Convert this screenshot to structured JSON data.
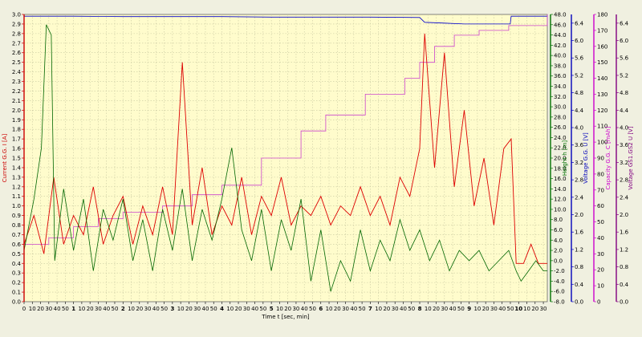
{
  "chart_data": {
    "type": "line",
    "xlabel": "Time  t  [sec, min]",
    "x_unit": "min",
    "xlim": [
      0,
      10.58
    ],
    "grid": true,
    "x_ticks": [
      {
        "label": "0",
        "x": 0
      },
      {
        "label": "10",
        "x": 0.1667
      },
      {
        "label": "20",
        "x": 0.3333
      },
      {
        "label": "30",
        "x": 0.5
      },
      {
        "label": "40",
        "x": 0.6667
      },
      {
        "label": "50",
        "x": 0.8333
      },
      {
        "label": "1",
        "x": 1,
        "major": true
      },
      {
        "label": "10",
        "x": 1.1667
      },
      {
        "label": "20",
        "x": 1.3333
      },
      {
        "label": "30",
        "x": 1.5
      },
      {
        "label": "40",
        "x": 1.6667
      },
      {
        "label": "50",
        "x": 1.8333
      },
      {
        "label": "2",
        "x": 2,
        "major": true
      },
      {
        "label": "10",
        "x": 2.1667
      },
      {
        "label": "20",
        "x": 2.3333
      },
      {
        "label": "30",
        "x": 2.5
      },
      {
        "label": "40",
        "x": 2.6667
      },
      {
        "label": "50",
        "x": 2.8333
      },
      {
        "label": "3",
        "x": 3,
        "major": true
      },
      {
        "label": "10",
        "x": 3.1667
      },
      {
        "label": "20",
        "x": 3.3333
      },
      {
        "label": "30",
        "x": 3.5
      },
      {
        "label": "40",
        "x": 3.6667
      },
      {
        "label": "50",
        "x": 3.8333
      },
      {
        "label": "4",
        "x": 4,
        "major": true
      },
      {
        "label": "10",
        "x": 4.1667
      },
      {
        "label": "20",
        "x": 4.3333
      },
      {
        "label": "30",
        "x": 4.5
      },
      {
        "label": "40",
        "x": 4.6667
      },
      {
        "label": "50",
        "x": 4.8333
      },
      {
        "label": "5",
        "x": 5,
        "major": true
      },
      {
        "label": "10",
        "x": 5.1667
      },
      {
        "label": "20",
        "x": 5.3333
      },
      {
        "label": "30",
        "x": 5.5
      },
      {
        "label": "40",
        "x": 5.6667
      },
      {
        "label": "50",
        "x": 5.8333
      },
      {
        "label": "6",
        "x": 6,
        "major": true
      },
      {
        "label": "10",
        "x": 6.1667
      },
      {
        "label": "20",
        "x": 6.3333
      },
      {
        "label": "30",
        "x": 6.5
      },
      {
        "label": "40",
        "x": 6.6667
      },
      {
        "label": "50",
        "x": 6.8333
      },
      {
        "label": "7",
        "x": 7,
        "major": true
      },
      {
        "label": "10",
        "x": 7.1667
      },
      {
        "label": "20",
        "x": 7.3333
      },
      {
        "label": "30",
        "x": 7.5
      },
      {
        "label": "40",
        "x": 7.6667
      },
      {
        "label": "50",
        "x": 7.8333
      },
      {
        "label": "8",
        "x": 8,
        "major": true
      },
      {
        "label": "10",
        "x": 8.1667
      },
      {
        "label": "20",
        "x": 8.3333
      },
      {
        "label": "30",
        "x": 8.5
      },
      {
        "label": "40",
        "x": 8.6667
      },
      {
        "label": "50",
        "x": 8.8333
      },
      {
        "label": "9",
        "x": 9,
        "major": true
      },
      {
        "label": "10",
        "x": 9.1667
      },
      {
        "label": "20",
        "x": 9.3333
      },
      {
        "label": "30",
        "x": 9.5
      },
      {
        "label": "40",
        "x": 9.6667
      },
      {
        "label": "50",
        "x": 9.8333
      },
      {
        "label": "10",
        "x": 10,
        "major": true
      },
      {
        "label": "10",
        "x": 10.1667
      },
      {
        "label": "20",
        "x": 10.3333
      },
      {
        "label": "30",
        "x": 10.5
      }
    ],
    "axes": [
      {
        "id": "current",
        "label": "Current G.G.  I  [A]",
        "side": "left",
        "color": "#cc0000",
        "min": 0,
        "max": 3,
        "step": 0.1,
        "decimals": 1
      },
      {
        "id": "height",
        "label": "Height  h  [m]",
        "side": "right",
        "color": "#007000",
        "min": -8,
        "max": 48,
        "step": 2,
        "decimals": 1
      },
      {
        "id": "voltage_gg",
        "label": "Voltage G.G.  U  [V]",
        "side": "right",
        "color": "#0000bb",
        "min": 0,
        "max": 6.6,
        "step": 0.4,
        "decimals": 1
      },
      {
        "id": "capacity",
        "label": "Capacity G.G.  C  [mAh]",
        "side": "right",
        "color": "#cc00cc",
        "min": 0,
        "max": 180,
        "step": 10,
        "decimals": 0
      },
      {
        "id": "voltage_gs",
        "label": "Voltage GS1.GS2  U  [V]",
        "side": "right",
        "color": "#800080",
        "min": 0,
        "max": 6.6,
        "step": 0.4,
        "decimals": 1
      }
    ],
    "series": [
      {
        "id": "voltage",
        "axis": "voltage_gg",
        "color": "#0000cc",
        "points": [
          [
            0,
            6.56
          ],
          [
            1,
            6.56
          ],
          [
            2,
            6.55
          ],
          [
            3,
            6.55
          ],
          [
            4,
            6.55
          ],
          [
            5,
            6.54
          ],
          [
            6,
            6.54
          ],
          [
            7,
            6.54
          ],
          [
            8,
            6.53
          ],
          [
            8.1,
            6.42
          ],
          [
            8.5,
            6.4
          ],
          [
            8.9,
            6.38
          ],
          [
            9.3,
            6.38
          ],
          [
            9.83,
            6.38
          ],
          [
            9.85,
            6.56
          ],
          [
            10.58,
            6.56
          ]
        ]
      },
      {
        "id": "capacity",
        "axis": "capacity",
        "color": "#cc44cc",
        "points": [
          [
            0,
            36
          ],
          [
            0.5,
            40
          ],
          [
            1,
            47
          ],
          [
            1.5,
            52
          ],
          [
            2,
            56
          ],
          [
            2.8,
            60
          ],
          [
            3.4,
            67
          ],
          [
            4,
            73
          ],
          [
            4.8,
            90
          ],
          [
            5.6,
            107
          ],
          [
            6.1,
            117
          ],
          [
            6.9,
            130
          ],
          [
            7.7,
            140
          ],
          [
            8,
            150
          ],
          [
            8.3,
            160
          ],
          [
            8.7,
            167
          ],
          [
            9.2,
            170
          ],
          [
            9.8,
            173
          ],
          [
            10.58,
            180
          ]
        ]
      },
      {
        "id": "current",
        "axis": "current",
        "color": "#dd0000",
        "points": [
          [
            0,
            0.6
          ],
          [
            0.2,
            0.9
          ],
          [
            0.4,
            0.5
          ],
          [
            0.6,
            1.3
          ],
          [
            0.8,
            0.6
          ],
          [
            1,
            0.9
          ],
          [
            1.2,
            0.7
          ],
          [
            1.4,
            1.2
          ],
          [
            1.6,
            0.6
          ],
          [
            1.8,
            0.9
          ],
          [
            2,
            1.1
          ],
          [
            2.2,
            0.6
          ],
          [
            2.4,
            1.0
          ],
          [
            2.6,
            0.7
          ],
          [
            2.8,
            1.2
          ],
          [
            3,
            0.7
          ],
          [
            3.2,
            2.5
          ],
          [
            3.4,
            0.8
          ],
          [
            3.6,
            1.4
          ],
          [
            3.8,
            0.7
          ],
          [
            4,
            1.0
          ],
          [
            4.2,
            0.8
          ],
          [
            4.4,
            1.3
          ],
          [
            4.6,
            0.7
          ],
          [
            4.8,
            1.1
          ],
          [
            5,
            0.9
          ],
          [
            5.2,
            1.3
          ],
          [
            5.4,
            0.8
          ],
          [
            5.6,
            1.0
          ],
          [
            5.8,
            0.9
          ],
          [
            6,
            1.1
          ],
          [
            6.2,
            0.8
          ],
          [
            6.4,
            1.0
          ],
          [
            6.6,
            0.9
          ],
          [
            6.8,
            1.2
          ],
          [
            7,
            0.9
          ],
          [
            7.2,
            1.1
          ],
          [
            7.4,
            0.8
          ],
          [
            7.6,
            1.3
          ],
          [
            7.8,
            1.1
          ],
          [
            8,
            1.6
          ],
          [
            8.1,
            2.8
          ],
          [
            8.3,
            1.4
          ],
          [
            8.5,
            2.6
          ],
          [
            8.7,
            1.2
          ],
          [
            8.9,
            2.0
          ],
          [
            9.1,
            1.0
          ],
          [
            9.3,
            1.5
          ],
          [
            9.5,
            0.8
          ],
          [
            9.7,
            1.6
          ],
          [
            9.85,
            1.7
          ],
          [
            9.95,
            0.4
          ],
          [
            10.1,
            0.4
          ],
          [
            10.25,
            0.6
          ],
          [
            10.4,
            0.4
          ],
          [
            10.58,
            0.4
          ]
        ]
      },
      {
        "id": "height",
        "axis": "height",
        "color": "#006600",
        "points": [
          [
            0,
            2
          ],
          [
            0.2,
            12
          ],
          [
            0.35,
            22
          ],
          [
            0.45,
            46
          ],
          [
            0.55,
            44
          ],
          [
            0.62,
            0
          ],
          [
            0.8,
            14
          ],
          [
            1,
            2
          ],
          [
            1.2,
            12
          ],
          [
            1.4,
            -2
          ],
          [
            1.6,
            10
          ],
          [
            1.8,
            4
          ],
          [
            2,
            12
          ],
          [
            2.2,
            0
          ],
          [
            2.4,
            8
          ],
          [
            2.6,
            -2
          ],
          [
            2.8,
            10
          ],
          [
            3,
            2
          ],
          [
            3.2,
            14
          ],
          [
            3.4,
            0
          ],
          [
            3.6,
            10
          ],
          [
            3.8,
            4
          ],
          [
            4,
            12
          ],
          [
            4.2,
            22
          ],
          [
            4.4,
            6
          ],
          [
            4.6,
            0
          ],
          [
            4.8,
            10
          ],
          [
            5,
            -2
          ],
          [
            5.2,
            8
          ],
          [
            5.4,
            2
          ],
          [
            5.6,
            12
          ],
          [
            5.8,
            -4
          ],
          [
            6,
            6
          ],
          [
            6.2,
            -6
          ],
          [
            6.4,
            0
          ],
          [
            6.6,
            -4
          ],
          [
            6.8,
            6
          ],
          [
            7,
            -2
          ],
          [
            7.2,
            4
          ],
          [
            7.4,
            0
          ],
          [
            7.6,
            8
          ],
          [
            7.8,
            2
          ],
          [
            8,
            6
          ],
          [
            8.2,
            0
          ],
          [
            8.4,
            4
          ],
          [
            8.6,
            -2
          ],
          [
            8.8,
            2
          ],
          [
            9,
            0
          ],
          [
            9.2,
            2
          ],
          [
            9.4,
            -2
          ],
          [
            9.6,
            0
          ],
          [
            9.8,
            2
          ],
          [
            9.95,
            -2
          ],
          [
            10.05,
            -4
          ],
          [
            10.2,
            -2
          ],
          [
            10.35,
            0
          ],
          [
            10.5,
            -2
          ],
          [
            10.58,
            -2
          ]
        ]
      }
    ]
  }
}
